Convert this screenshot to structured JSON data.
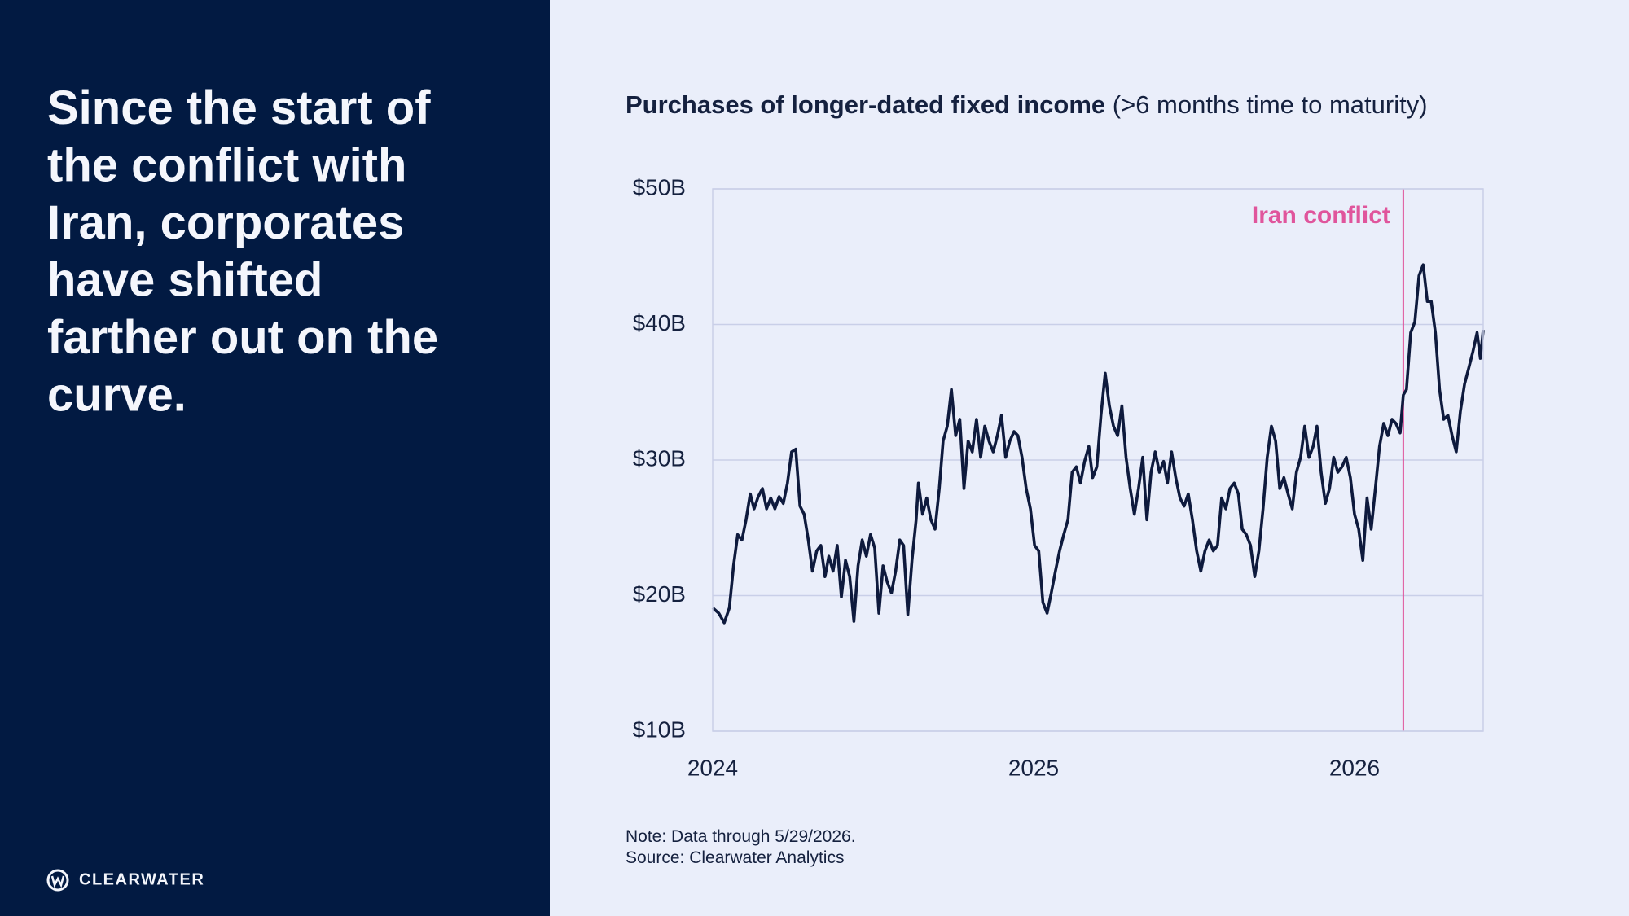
{
  "headline": [
    "Since the start of",
    "the conflict with",
    "Iran, corporates",
    "have shifted",
    "farther out on the",
    "curve."
  ],
  "logo": "CLEARWATER",
  "chart_data": {
    "type": "line",
    "title": "Purchases of longer-dated fixed income",
    "subtitle": "(>6 months time to maturity)",
    "notes": [
      "Note: Data through 5/29/2026.",
      "Source: Clearwater Analytics"
    ],
    "color": "#0e1a3d",
    "grid": true,
    "xlim": [
      2024,
      2026.401
    ],
    "xticks": [
      2024,
      2025,
      2026
    ],
    "ylim": [
      10,
      50
    ],
    "yticks": [
      {
        "value": 10,
        "label": "$10B"
      },
      {
        "value": 20,
        "label": "$20B"
      },
      {
        "value": 30,
        "label": "$30B"
      },
      {
        "value": 40,
        "label": "$40B"
      },
      {
        "value": 50,
        "label": "$50B"
      }
    ],
    "annotations": [
      {
        "x": 2026.152,
        "label": "Iran conflict",
        "color": "#e0559c"
      }
    ],
    "x": [
      2024.0,
      2024.019,
      2024.036,
      2024.052,
      2024.065,
      2024.078,
      2024.091,
      2024.104,
      2024.117,
      2024.129,
      2024.142,
      2024.155,
      2024.168,
      2024.181,
      2024.194,
      2024.207,
      2024.22,
      2024.233,
      2024.246,
      2024.259,
      2024.272,
      2024.285,
      2024.298,
      2024.311,
      2024.324,
      2024.337,
      2024.35,
      2024.362,
      2024.375,
      2024.388,
      2024.401,
      2024.414,
      2024.427,
      2024.44,
      2024.453,
      2024.466,
      2024.479,
      2024.492,
      2024.505,
      2024.518,
      2024.531,
      2024.544,
      2024.557,
      2024.57,
      2024.583,
      2024.595,
      2024.608,
      2024.621,
      2024.634,
      2024.641,
      2024.654,
      2024.667,
      2024.68,
      2024.693,
      2024.706,
      2024.718,
      2024.731,
      2024.744,
      2024.757,
      2024.77,
      2024.783,
      2024.796,
      2024.809,
      2024.822,
      2024.835,
      2024.848,
      2024.861,
      2024.874,
      2024.887,
      2024.9,
      2024.913,
      2024.926,
      2024.939,
      2024.951,
      2024.964,
      2024.977,
      2024.99,
      2025.003,
      2025.016,
      2025.029,
      2025.042,
      2025.055,
      2025.068,
      2025.081,
      2025.094,
      2025.107,
      2025.12,
      2025.133,
      2025.146,
      2025.159,
      2025.172,
      2025.184,
      2025.197,
      2025.21,
      2025.223,
      2025.236,
      2025.249,
      2025.262,
      2025.275,
      2025.288,
      2025.301,
      2025.314,
      2025.327,
      2025.34,
      2025.353,
      2025.366,
      2025.379,
      2025.392,
      2025.405,
      2025.417,
      2025.43,
      2025.443,
      2025.456,
      2025.469,
      2025.482,
      2025.495,
      2025.508,
      2025.521,
      2025.534,
      2025.547,
      2025.56,
      2025.573,
      2025.586,
      2025.599,
      2025.612,
      2025.625,
      2025.638,
      2025.65,
      2025.663,
      2025.676,
      2025.689,
      2025.702,
      2025.715,
      2025.728,
      2025.741,
      2025.754,
      2025.767,
      2025.78,
      2025.793,
      2025.806,
      2025.819,
      2025.832,
      2025.845,
      2025.858,
      2025.871,
      2025.883,
      2025.896,
      2025.909,
      2025.922,
      2025.935,
      2025.948,
      2025.961,
      2025.974,
      2025.987,
      2026.0,
      2026.013,
      2026.026,
      2026.039,
      2026.052,
      2026.065,
      2026.078,
      2026.091,
      2026.104,
      2026.117,
      2026.129,
      2026.142,
      2026.152,
      2026.162,
      2026.175,
      2026.188,
      2026.201,
      2026.214,
      2026.227,
      2026.239,
      2026.252,
      2026.265,
      2026.278,
      2026.291,
      2026.304,
      2026.317,
      2026.33,
      2026.343,
      2026.356,
      2026.369,
      2026.382,
      2026.392,
      2026.401
    ],
    "values": [
      19.1,
      18.7,
      18.0,
      19.1,
      22.2,
      24.5,
      24.1,
      25.6,
      27.5,
      26.4,
      27.3,
      27.9,
      26.4,
      27.2,
      26.4,
      27.3,
      26.8,
      28.3,
      30.6,
      30.8,
      26.6,
      26.0,
      24.1,
      21.8,
      23.3,
      23.7,
      21.4,
      22.9,
      21.8,
      23.7,
      19.9,
      22.6,
      21.4,
      18.1,
      22.2,
      24.1,
      22.9,
      24.5,
      23.5,
      18.7,
      22.2,
      21.0,
      20.2,
      21.8,
      24.1,
      23.7,
      18.6,
      22.6,
      25.6,
      28.3,
      26.0,
      27.2,
      25.6,
      24.9,
      27.9,
      31.4,
      32.5,
      35.2,
      31.8,
      33.0,
      27.9,
      31.4,
      30.6,
      33.0,
      30.2,
      32.5,
      31.4,
      30.6,
      31.8,
      33.3,
      30.2,
      31.4,
      32.1,
      31.8,
      30.2,
      27.9,
      26.4,
      23.7,
      23.3,
      19.5,
      18.7,
      20.2,
      21.8,
      23.3,
      24.5,
      25.6,
      29.1,
      29.5,
      28.3,
      29.9,
      31.0,
      28.7,
      29.5,
      33.3,
      36.4,
      34.0,
      32.5,
      31.8,
      34.0,
      30.2,
      27.9,
      26.0,
      27.9,
      30.2,
      25.6,
      29.1,
      30.6,
      29.1,
      29.9,
      28.3,
      30.6,
      28.7,
      27.2,
      26.6,
      27.5,
      25.6,
      23.3,
      21.8,
      23.3,
      24.1,
      23.3,
      23.7,
      27.2,
      26.4,
      27.9,
      28.3,
      27.5,
      24.9,
      24.5,
      23.7,
      21.4,
      23.3,
      26.4,
      30.2,
      32.5,
      31.4,
      27.9,
      28.7,
      27.5,
      26.4,
      29.1,
      30.2,
      32.5,
      30.2,
      31.0,
      32.5,
      29.1,
      26.8,
      27.9,
      30.2,
      29.1,
      29.5,
      30.2,
      28.7,
      26.0,
      24.9,
      22.6,
      27.2,
      24.9,
      27.9,
      31.0,
      32.7,
      31.8,
      33.0,
      32.7,
      32.0,
      34.8,
      35.2,
      39.4,
      40.2,
      43.6,
      44.4,
      41.7,
      41.7,
      39.4,
      35.2,
      33.0,
      33.3,
      31.8,
      30.6,
      33.6,
      35.6,
      36.8,
      38.0,
      39.4,
      37.5,
      39.6
    ]
  }
}
